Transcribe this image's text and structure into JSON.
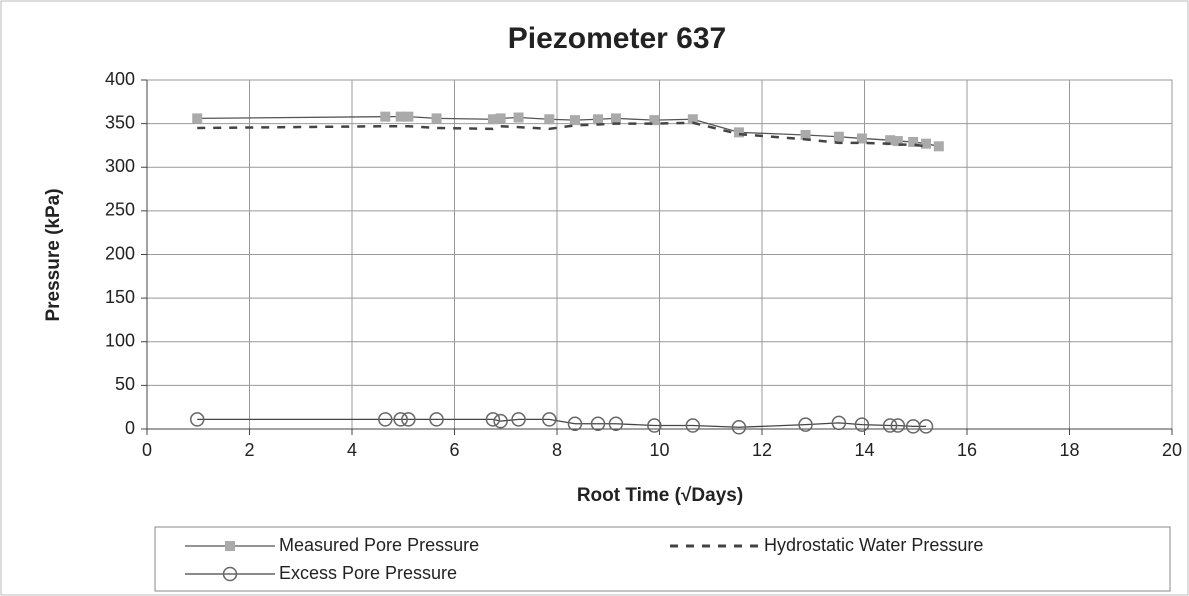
{
  "chart_data": {
    "type": "line",
    "title": "Piezometer 637",
    "xlabel": "Root Time (√Days)",
    "ylabel": "Pressure (kPa)",
    "x": [
      0.98,
      4.65,
      4.95,
      5.1,
      5.65,
      6.75,
      6.9,
      7.25,
      7.85,
      8.35,
      8.8,
      9.15,
      9.9,
      10.65,
      11.55,
      12.85,
      13.5,
      13.95,
      14.5,
      14.65,
      14.95,
      15.2,
      15.45
    ],
    "series": [
      {
        "name": "Measured Pore Pressure",
        "color": "#555555",
        "marker": "square",
        "marker_color": "#aaaaaa",
        "dash": false,
        "values": [
          356,
          358,
          358,
          358,
          356,
          355,
          356,
          357,
          355,
          354,
          355,
          356,
          354,
          355,
          340,
          337,
          335,
          333,
          331,
          330,
          329,
          327,
          324
        ]
      },
      {
        "name": "Hydrostatic Water Pressure",
        "color": "#444444",
        "marker": "none",
        "dash": true,
        "values": [
          345,
          347,
          347,
          347,
          345,
          344,
          347,
          346,
          344,
          348,
          349,
          350,
          350,
          351,
          338,
          332,
          328,
          328,
          327,
          326,
          326,
          324,
          null
        ]
      },
      {
        "name": "Excess Pore Pressure",
        "color": "#444444",
        "marker": "circle",
        "marker_color": "#666666",
        "dash": false,
        "values": [
          11,
          11,
          11,
          11,
          11,
          11,
          9,
          11,
          11,
          6,
          6,
          6,
          4,
          4,
          2,
          5,
          7,
          5,
          4,
          4,
          3,
          3,
          null
        ]
      }
    ],
    "xlim": [
      0,
      20
    ],
    "xticks": [
      0,
      2,
      4,
      6,
      8,
      10,
      12,
      14,
      16,
      18,
      20
    ],
    "ylim": [
      0,
      400
    ],
    "yticks": [
      0,
      50,
      100,
      150,
      200,
      250,
      300,
      350,
      400
    ],
    "grid": true,
    "legend": "bottom"
  }
}
